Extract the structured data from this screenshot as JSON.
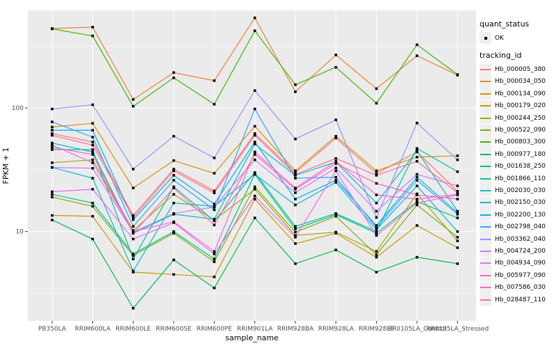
{
  "figure": {
    "background": "#FFFFFF",
    "panel_background": "#EBEBEB",
    "grid_color": "#FFFFFF",
    "axis_text_color": "#4D4D4D",
    "tick_color": "#333333",
    "marker_color": "#000000",
    "legend_key_background": "#EFEFEF"
  },
  "legend": {
    "quant_status_title": "quant_status",
    "quant_status_items": [
      {
        "label": "OK",
        "marker": "black-point"
      }
    ],
    "tracking_id_title": "tracking_id"
  },
  "chart_data": {
    "type": "line",
    "title": "",
    "xlabel": "sample_name",
    "ylabel": "FPKM + 1",
    "y_scale": "log10",
    "y_ticks": [
      {
        "label": "100",
        "value": 100
      },
      {
        "label": "10",
        "value": 10
      }
    ],
    "y_minor_ticks": [
      3.162,
      31.62,
      316.2
    ],
    "ylim": [
      1.9,
      615
    ],
    "grid": true,
    "legend_position": "right",
    "marker": "small-black-point",
    "quant_status_all_points": "OK",
    "categories": [
      "PB350LA",
      "RRIM600LA",
      "RRIM600LE",
      "RRIM600SE",
      "RRIM600PE",
      "RRIM901LA",
      "RRIM928BA",
      "RRIM928LA",
      "RRIM928LE",
      "RRII105LA_Control",
      "RRII105LA_Stressed"
    ],
    "series": [
      {
        "name": "Hb_000005_380",
        "color": "#F8766D",
        "values": [
          62,
          53,
          13.5,
          32,
          21.3,
          62,
          30,
          57,
          29.5,
          44,
          21.2
        ]
      },
      {
        "name": "Hb_000034_050",
        "color": "#EA8331",
        "values": [
          438,
          450,
          117,
          193,
          166,
          535,
          135,
          268,
          143,
          264,
          184
        ]
      },
      {
        "name": "Hb_000134_090",
        "color": "#D89000",
        "values": [
          70,
          75,
          22.5,
          37.5,
          29.6,
          71,
          31,
          59,
          31,
          40,
          41
        ]
      },
      {
        "name": "Hb_000179_020",
        "color": "#C09B00",
        "values": [
          13.5,
          13.3,
          4.7,
          4.5,
          4.3,
          18.3,
          8,
          9.7,
          6.2,
          11.2,
          7.4
        ]
      },
      {
        "name": "Hb_000244_250",
        "color": "#A3A500",
        "values": [
          36,
          38,
          10.2,
          20,
          12.4,
          22,
          9.3,
          9.9,
          6.9,
          20.2,
          8.4
        ]
      },
      {
        "name": "Hb_000522_090",
        "color": "#7CAE00",
        "values": [
          19,
          16,
          6.4,
          9.7,
          5.7,
          23,
          9.9,
          13.3,
          6.5,
          16.4,
          9
        ]
      },
      {
        "name": "Hb_000803_300",
        "color": "#39B600",
        "values": [
          435,
          382,
          103,
          175,
          107,
          420,
          154,
          213,
          109,
          324,
          186
        ]
      },
      {
        "name": "Hb_000977_180",
        "color": "#00BB4E",
        "values": [
          12.4,
          8.7,
          2.4,
          5.9,
          3.5,
          12.9,
          5.5,
          7.1,
          4.7,
          6.2,
          5.5
        ]
      },
      {
        "name": "Hb_001638_250",
        "color": "#00BF7D",
        "values": [
          20,
          17,
          6.6,
          10,
          6,
          29,
          10.5,
          13.7,
          9.7,
          17.5,
          12.9
        ]
      },
      {
        "name": "Hb_001866_110",
        "color": "#00C1A3",
        "values": [
          46,
          46,
          6,
          23,
          12.2,
          30,
          11,
          14,
          10,
          47,
          30.5
        ]
      },
      {
        "name": "Hb_002030_030",
        "color": "#00BFC4",
        "values": [
          52,
          44,
          9.7,
          13.8,
          12.6,
          51,
          28.5,
          36.5,
          17,
          45,
          14.6
        ]
      },
      {
        "name": "Hb_002150_030",
        "color": "#00BBDA",
        "values": [
          33,
          27,
          4.8,
          17,
          16,
          29,
          16.4,
          25,
          10.4,
          23.4,
          10
        ]
      },
      {
        "name": "Hb_002200_130",
        "color": "#00B0F6",
        "values": [
          66,
          66,
          12.5,
          28.5,
          16.7,
          53,
          18.3,
          26,
          11.2,
          27.5,
          14.2
        ]
      },
      {
        "name": "Hb_002798_040",
        "color": "#35A2FF",
        "values": [
          77,
          58,
          11,
          26,
          15,
          98,
          27,
          27.5,
          10.8,
          26,
          13.8
        ]
      },
      {
        "name": "Hb_003362_040",
        "color": "#9590FF",
        "values": [
          98,
          106,
          32,
          59,
          39.4,
          138,
          56,
          80,
          13,
          75.5,
          38
        ]
      },
      {
        "name": "Hb_004724_200",
        "color": "#C77CFF",
        "values": [
          33,
          32.5,
          9.9,
          14,
          15.8,
          38,
          20.6,
          32.7,
          14.6,
          29,
          23.4
        ]
      },
      {
        "name": "Hb_004934_090",
        "color": "#E76BF3",
        "values": [
          21,
          22,
          8.7,
          11.8,
          6.6,
          19.4,
          9,
          31,
          9.3,
          17,
          19.8
        ]
      },
      {
        "name": "Hb_005977_090",
        "color": "#FA62DB",
        "values": [
          50,
          36,
          10,
          12,
          6.9,
          44,
          22.5,
          37,
          19.8,
          18.3,
          20
        ]
      },
      {
        "name": "Hb_007586_030",
        "color": "#FF62BC",
        "values": [
          48,
          42,
          9.7,
          22.5,
          11.3,
          42,
          22,
          35.5,
          24.5,
          19.8,
          18.3
        ]
      },
      {
        "name": "Hb_028487_110",
        "color": "#FF6A98",
        "values": [
          60,
          50,
          13,
          31,
          20.5,
          60,
          29,
          39,
          28.5,
          37,
          20.6
        ]
      }
    ]
  }
}
